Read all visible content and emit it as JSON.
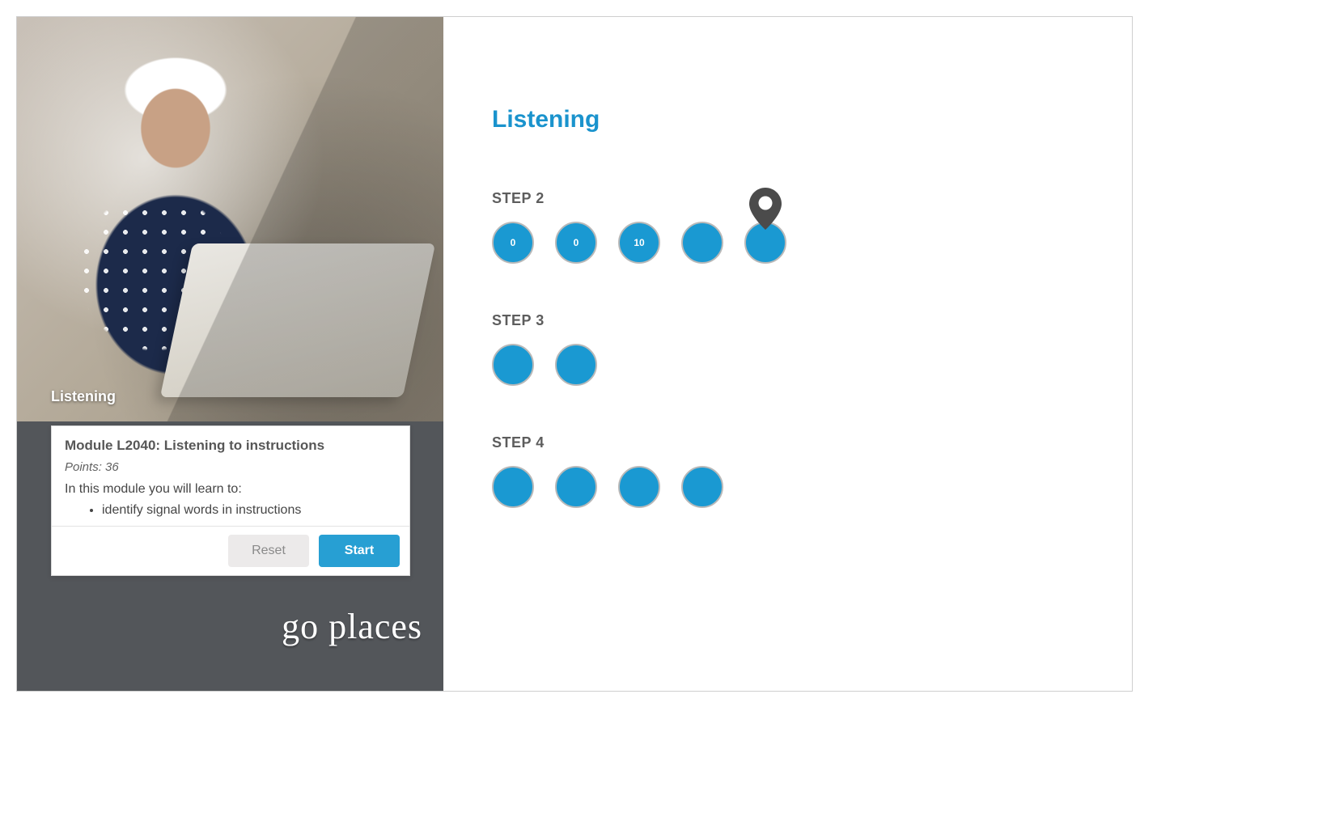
{
  "colors": {
    "accent": "#1a99d2",
    "title": "#1a93cd",
    "left_pane_bg": "#53565a",
    "border": "#cfcfcf",
    "dot_border": "#b9b9b9",
    "text_muted": "#5d5d5d",
    "btn_reset_bg": "#eceaea",
    "btn_reset_fg": "#8a8a8a",
    "btn_start_bg": "#279fd3",
    "btn_start_fg": "#ffffff",
    "pin_fill": "#4b4b4b",
    "pin_inner": "#ffffff"
  },
  "left": {
    "hero_caption": "Listening",
    "module": {
      "title": "Module L2040: Listening to instructions",
      "points_label": "Points: 36",
      "intro": "In this module you will learn to:",
      "bullets": [
        "identify signal words in instructions"
      ]
    },
    "actions": {
      "reset": "Reset",
      "start": "Start"
    },
    "tagline": "go places"
  },
  "right": {
    "title": "Listening",
    "steps": [
      {
        "label": "STEP 2",
        "dots": [
          {
            "value": "0",
            "has_pin": false
          },
          {
            "value": "0",
            "has_pin": false
          },
          {
            "value": "10",
            "has_pin": false
          },
          {
            "value": "",
            "has_pin": false
          },
          {
            "value": "",
            "has_pin": true
          }
        ]
      },
      {
        "label": "STEP 3",
        "dots": [
          {
            "value": "",
            "has_pin": false
          },
          {
            "value": "",
            "has_pin": false
          }
        ]
      },
      {
        "label": "STEP 4",
        "dots": [
          {
            "value": "",
            "has_pin": false
          },
          {
            "value": "",
            "has_pin": false
          },
          {
            "value": "",
            "has_pin": false
          },
          {
            "value": "",
            "has_pin": false
          }
        ]
      }
    ]
  }
}
